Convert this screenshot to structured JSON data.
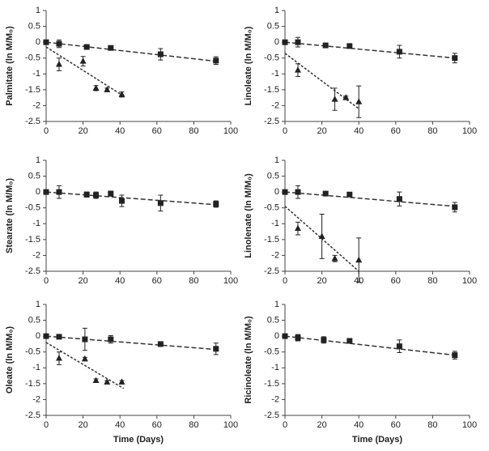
{
  "chart_data": [
    {
      "type": "scatter",
      "y_label": "Palmitate (ln M/M₀)",
      "xlim": [
        0,
        100
      ],
      "xticks": [
        0,
        20,
        40,
        60,
        80,
        100
      ],
      "ylim": [
        -2.5,
        1
      ],
      "yticks": [
        -2.5,
        -2,
        -1.5,
        -1,
        -0.5,
        0,
        0.5,
        1
      ],
      "series": [
        {
          "marker": "square",
          "color": "#222222",
          "x": [
            0,
            7,
            22,
            35,
            62,
            92
          ],
          "values": [
            0,
            -0.05,
            -0.15,
            -0.18,
            -0.38,
            -0.58
          ],
          "errors": [
            0.05,
            0.12,
            0.05,
            0.05,
            0.18,
            0.12
          ]
        },
        {
          "marker": "triangle",
          "color": "#222222",
          "x": [
            7,
            20,
            27,
            33,
            41
          ],
          "values": [
            -0.7,
            -0.6,
            -1.45,
            -1.5,
            -1.65
          ],
          "errors": [
            0.2,
            0.15,
            0.08,
            0.05,
            0.08
          ]
        }
      ],
      "fits": [
        {
          "dash": "dashed",
          "x": [
            0,
            92
          ],
          "values": [
            0,
            -0.6
          ]
        },
        {
          "dash": "dotted",
          "x": [
            0,
            42
          ],
          "values": [
            -0.15,
            -1.7
          ]
        }
      ]
    },
    {
      "type": "scatter",
      "y_label": "Linoleate (ln M/M₀)",
      "xlim": [
        0,
        100
      ],
      "xticks": [
        0,
        20,
        40,
        60,
        80,
        100
      ],
      "ylim": [
        -2.5,
        1
      ],
      "yticks": [
        -2.5,
        -2,
        -1.5,
        -1,
        -0.5,
        0,
        0.5,
        1
      ],
      "series": [
        {
          "marker": "square",
          "color": "#222222",
          "x": [
            0,
            7,
            22,
            35,
            62,
            92
          ],
          "values": [
            0,
            0,
            -0.1,
            -0.12,
            -0.3,
            -0.5
          ],
          "errors": [
            0.05,
            0.15,
            0.05,
            0.05,
            0.2,
            0.15
          ]
        },
        {
          "marker": "triangle",
          "color": "#222222",
          "x": [
            7,
            27,
            33,
            40
          ],
          "values": [
            -0.88,
            -1.8,
            -1.75,
            -1.88
          ],
          "errors": [
            0.2,
            0.35,
            0.05,
            0.5
          ]
        }
      ],
      "fits": [
        {
          "dash": "dashed",
          "x": [
            0,
            92
          ],
          "values": [
            0,
            -0.5
          ]
        },
        {
          "dash": "dotted",
          "x": [
            0,
            40
          ],
          "values": [
            -0.35,
            -2.1
          ]
        }
      ]
    },
    {
      "type": "scatter",
      "y_label": "Stearate (ln M/M₀)",
      "xlim": [
        0,
        100
      ],
      "xticks": [
        0,
        20,
        40,
        60,
        80,
        100
      ],
      "ylim": [
        -2.5,
        1
      ],
      "yticks": [
        -2.5,
        -2,
        -1.5,
        -1,
        -0.5,
        0,
        0.5,
        1
      ],
      "series": [
        {
          "marker": "square",
          "color": "#222222",
          "x": [
            0,
            7,
            22,
            27,
            35,
            41,
            62,
            92
          ],
          "values": [
            0,
            0,
            -0.08,
            -0.1,
            -0.05,
            -0.28,
            -0.35,
            -0.38
          ],
          "errors": [
            0.05,
            0.2,
            0.08,
            0.1,
            0.08,
            0.18,
            0.25,
            0.1
          ]
        }
      ],
      "fits": [
        {
          "dash": "dashed",
          "x": [
            0,
            92
          ],
          "values": [
            0,
            -0.4
          ]
        }
      ]
    },
    {
      "type": "scatter",
      "y_label": "Linolenate (ln M/M₀)",
      "xlim": [
        0,
        100
      ],
      "xticks": [
        0,
        20,
        40,
        60,
        80,
        100
      ],
      "ylim": [
        -2.5,
        1
      ],
      "yticks": [
        -2.5,
        -2,
        -1.5,
        -1,
        -0.5,
        0,
        0.5,
        1
      ],
      "series": [
        {
          "marker": "square",
          "color": "#222222",
          "x": [
            0,
            7,
            22,
            35,
            62,
            92
          ],
          "values": [
            0,
            0,
            -0.05,
            -0.08,
            -0.22,
            -0.48
          ],
          "errors": [
            0.05,
            0.2,
            0.05,
            0.03,
            0.22,
            0.15
          ]
        },
        {
          "marker": "triangle",
          "color": "#222222",
          "x": [
            7,
            20,
            27,
            40
          ],
          "values": [
            -1.15,
            -1.4,
            -2.1,
            -2.15
          ],
          "errors": [
            0.2,
            0.7,
            0.1,
            0.7
          ]
        }
      ],
      "fits": [
        {
          "dash": "dashed",
          "x": [
            0,
            92
          ],
          "values": [
            0,
            -0.45
          ]
        },
        {
          "dash": "dotted",
          "x": [
            0,
            40
          ],
          "values": [
            -0.45,
            -2.5
          ]
        }
      ]
    },
    {
      "type": "scatter",
      "y_label": "Oleate (ln M/M₀)",
      "x_label": "Time (Days)",
      "xlim": [
        0,
        100
      ],
      "xticks": [
        0,
        20,
        40,
        60,
        80,
        100
      ],
      "ylim": [
        -2.5,
        1
      ],
      "yticks": [
        -2.5,
        -2,
        -1.5,
        -1,
        -0.5,
        0,
        0.5,
        1
      ],
      "series": [
        {
          "marker": "square",
          "color": "#222222",
          "x": [
            0,
            7,
            21,
            35,
            62,
            92
          ],
          "values": [
            0,
            -0.02,
            -0.1,
            -0.1,
            -0.25,
            -0.4
          ],
          "errors": [
            0.05,
            0.05,
            0.35,
            0.12,
            0.05,
            0.18
          ]
        },
        {
          "marker": "triangle",
          "color": "#222222",
          "x": [
            7,
            21,
            27,
            33,
            41
          ],
          "values": [
            -0.7,
            -0.72,
            -1.4,
            -1.45,
            -1.45
          ],
          "errors": [
            0.2,
            0.05,
            0.05,
            0.05,
            0.05
          ]
        }
      ],
      "fits": [
        {
          "dash": "dashed",
          "x": [
            0,
            92
          ],
          "values": [
            0,
            -0.42
          ]
        },
        {
          "dash": "dotted",
          "x": [
            0,
            42
          ],
          "values": [
            -0.2,
            -1.65
          ]
        }
      ]
    },
    {
      "type": "scatter",
      "y_label": "Ricinoleate (ln M/M₀)",
      "x_label": "Time (Days)",
      "xlim": [
        0,
        100
      ],
      "xticks": [
        0,
        20,
        40,
        60,
        80,
        100
      ],
      "ylim": [
        -2.5,
        1
      ],
      "yticks": [
        -2.5,
        -2,
        -1.5,
        -1,
        -0.5,
        0,
        0.5,
        1
      ],
      "series": [
        {
          "marker": "square",
          "color": "#222222",
          "x": [
            0,
            7,
            21,
            35,
            62,
            92
          ],
          "values": [
            0,
            -0.05,
            -0.12,
            -0.15,
            -0.32,
            -0.6
          ],
          "errors": [
            0.05,
            0.1,
            0.1,
            0.05,
            0.2,
            0.12
          ]
        }
      ],
      "fits": [
        {
          "dash": "dashed",
          "x": [
            0,
            92
          ],
          "values": [
            0,
            -0.6
          ]
        }
      ]
    }
  ]
}
